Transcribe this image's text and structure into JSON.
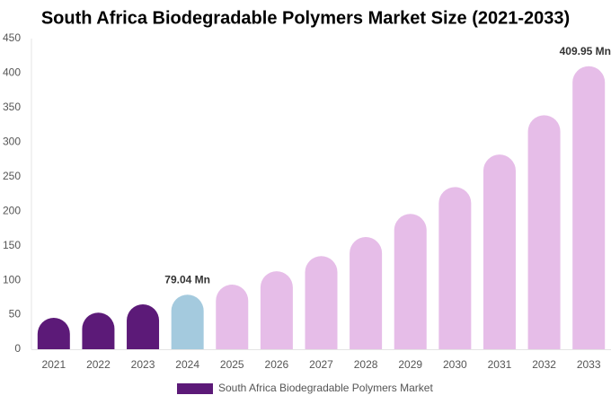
{
  "chart_data": {
    "type": "bar",
    "title": "South Africa Biodegradable Polymers Market Size (2021-2033)",
    "categories": [
      "2021",
      "2022",
      "2023",
      "2024",
      "2025",
      "2026",
      "2027",
      "2028",
      "2029",
      "2030",
      "2031",
      "2032",
      "2033"
    ],
    "series": [
      {
        "name": "South Africa Biodegradable Polymers Market",
        "color": "#5c1a78",
        "values": [
          45.5,
          53,
          65,
          79.04,
          93.6,
          113,
          135,
          162.5,
          196,
          235,
          282,
          339,
          409.95
        ],
        "value_labels": [
          null,
          null,
          null,
          "79.04 Mn",
          null,
          null,
          null,
          null,
          null,
          null,
          null,
          null,
          "409.95 Mn"
        ],
        "colors": [
          "#5c1a78",
          "#5c1a78",
          "#5c1a78",
          "#a4cade",
          "#e6bde8",
          "#e6bde8",
          "#e6bde8",
          "#e6bde8",
          "#e6bde8",
          "#e6bde8",
          "#e6bde8",
          "#e6bde8",
          "#e6bde8"
        ]
      }
    ],
    "ylim": [
      0,
      450
    ],
    "yticks": [
      0,
      50,
      100,
      150,
      200,
      250,
      300,
      350,
      400,
      450
    ],
    "grid": false
  }
}
